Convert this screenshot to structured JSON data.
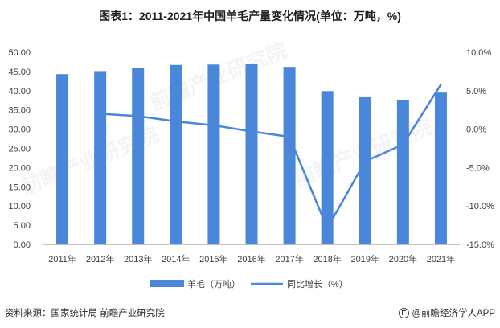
{
  "title": "图表1：2011-2021年中国羊毛产量变化情况(单位：万吨，%)",
  "chart_data": {
    "type": "bar",
    "categories": [
      "2011年",
      "2012年",
      "2013年",
      "2014年",
      "2015年",
      "2016年",
      "2017年",
      "2018年",
      "2019年",
      "2020年",
      "2021年"
    ],
    "series": [
      {
        "name": "羊毛（万吨）",
        "type": "bar",
        "axis": "left",
        "color": "#4a86d9",
        "values": [
          44.3,
          45.1,
          46.0,
          46.7,
          46.8,
          46.9,
          46.2,
          39.9,
          38.3,
          37.5,
          39.5
        ]
      },
      {
        "name": "同比增长（%）",
        "type": "line",
        "axis": "right",
        "color": "#4a86d9",
        "values": [
          null,
          2.0,
          1.7,
          1.0,
          0.5,
          -0.3,
          -1.0,
          -12.9,
          -4.2,
          -2.0,
          5.8
        ]
      }
    ],
    "left_axis": {
      "min": 0,
      "max": 50,
      "step": 5,
      "tick_labels": [
        "0.00",
        "5.00",
        "10.00",
        "15.00",
        "20.00",
        "25.00",
        "30.00",
        "35.00",
        "40.00",
        "45.00",
        "50.00"
      ]
    },
    "right_axis": {
      "min": -15,
      "max": 10,
      "step": 5,
      "tick_labels": [
        "-15.0%",
        "-10.0%",
        "-5.0%",
        "0.0%",
        "5.0%",
        "10.0%"
      ]
    },
    "grid": false,
    "legend_position": "bottom"
  },
  "footer": {
    "source": "资料来源：国家统计局 前瞻产业研究院",
    "brand": "@前瞻经济学人APP"
  },
  "watermark": "前瞻产业研究院"
}
